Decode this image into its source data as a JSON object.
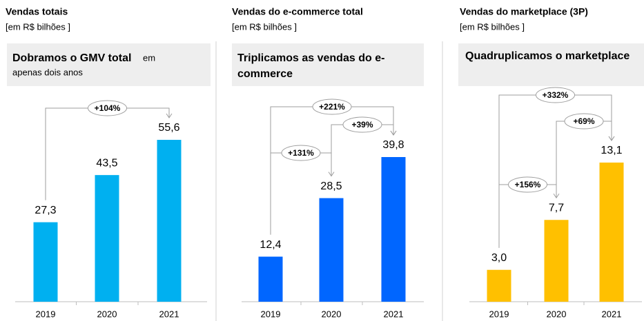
{
  "chart_data": [
    {
      "type": "bar",
      "title": "Vendas totais",
      "subtitle": "[em R$ bilhões ]",
      "headline": [
        "Dobramos o GMV total",
        "em",
        "apenas dois anos"
      ],
      "categories": [
        "2019",
        "2020",
        "2021"
      ],
      "values": [
        27.3,
        43.5,
        55.6
      ],
      "value_labels": [
        "27,3",
        "43,5",
        "55,6"
      ],
      "color": "#00b0f0",
      "annotations": [
        "+104%"
      ]
    },
    {
      "type": "bar",
      "title": "Vendas do e-commerce total",
      "subtitle": "[em R$ bilhões ]",
      "headline": [
        "Triplicamos as vendas do e-",
        "commerce"
      ],
      "categories": [
        "2019",
        "2020",
        "2021"
      ],
      "values": [
        12.4,
        28.5,
        39.8
      ],
      "value_labels": [
        "12,4",
        "28,5",
        "39,8"
      ],
      "color": "#0066ff",
      "annotations": [
        "+221%",
        "+39%",
        "+131%"
      ]
    },
    {
      "type": "bar",
      "title": "Vendas do marketplace (3P)",
      "subtitle": "[em R$ bilhões ]",
      "headline": [
        "Quadruplicamos o marketplace"
      ],
      "categories": [
        "2019",
        "2020",
        "2021"
      ],
      "values": [
        3.0,
        7.7,
        13.1
      ],
      "value_labels": [
        "3,0",
        "7,7",
        "13,1"
      ],
      "color": "#ffc000",
      "annotations": [
        "+332%",
        "+69%",
        "+156%"
      ]
    }
  ]
}
